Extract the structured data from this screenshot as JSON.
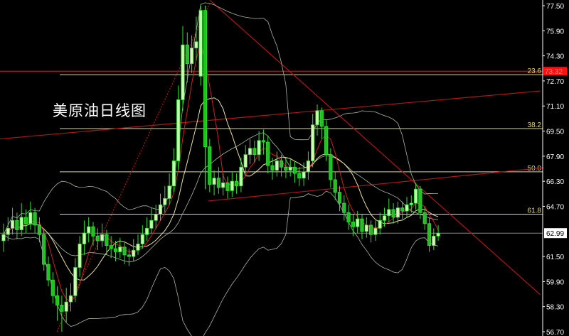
{
  "chart_data": {
    "type": "candlestick",
    "title": "美原油日线图",
    "y_ticks": [
      "77.50",
      "75.90",
      "74.30",
      "72.70",
      "71.10",
      "69.50",
      "67.90",
      "66.30",
      "64.70",
      "61.50",
      "59.90",
      "58.30",
      "56.70"
    ],
    "ylim": [
      56.7,
      77.5
    ],
    "last_price": "62.99",
    "red_level_label": "73.32",
    "red_level": 73.32,
    "fib_levels": [
      {
        "label": "23.6",
        "price": 73.1
      },
      {
        "label": "38.2",
        "price": 69.66
      },
      {
        "label": "50.0",
        "price": 66.9
      },
      {
        "label": "61.8",
        "price": 64.2
      }
    ],
    "trend_lines": [
      {
        "style": "solid",
        "from": [
          -0.8,
          69.0
        ],
        "to": [
          119.8,
          72.06
        ]
      },
      {
        "style": "solid",
        "from": [
          46,
          77.86
        ],
        "to": [
          119.8,
          59.06
        ]
      },
      {
        "style": "solid",
        "from": [
          45.7,
          65.04
        ],
        "to": [
          127,
          67.35
        ]
      },
      {
        "style": "dotted",
        "from": [
          11.9,
          56.7
        ],
        "to": [
          46,
          77.64
        ]
      }
    ],
    "indicators": {
      "ma_fast": 5,
      "ma_slow": 10,
      "bollinger": 20
    },
    "colors": {
      "up": "#c8ffb0",
      "down": "#22c022",
      "wick": "#33dd33",
      "ma_fast": "#d02020",
      "ma_slow": "#e8e0a0",
      "bollinger": "#a8b8a0",
      "fib": "#d8d8a8",
      "trend": "#b01818",
      "axis": "#ffffff",
      "price_tag": "#ff1010"
    },
    "ohlc": [
      [
        62.5,
        63.6,
        61.8,
        62.9
      ],
      [
        62.9,
        64.0,
        62.5,
        63.3
      ],
      [
        63.3,
        64.6,
        62.9,
        63.8
      ],
      [
        63.8,
        64.3,
        62.6,
        63.2
      ],
      [
        63.2,
        64.9,
        62.8,
        64.0
      ],
      [
        64.0,
        64.5,
        63.0,
        63.6
      ],
      [
        63.6,
        65.0,
        63.2,
        64.3
      ],
      [
        64.3,
        64.6,
        63.0,
        63.5
      ],
      [
        63.5,
        64.0,
        62.4,
        62.9
      ],
      [
        62.9,
        63.2,
        60.6,
        61.0
      ],
      [
        61.0,
        61.5,
        59.6,
        60.0
      ],
      [
        60.0,
        60.5,
        58.5,
        59.0
      ],
      [
        59.0,
        59.6,
        57.4,
        58.4
      ],
      [
        58.4,
        59.0,
        56.7,
        58.0
      ],
      [
        58.0,
        59.5,
        57.3,
        58.6
      ],
      [
        58.6,
        59.8,
        58.0,
        59.0
      ],
      [
        59.0,
        61.4,
        58.6,
        60.8
      ],
      [
        60.8,
        62.8,
        60.2,
        62.3
      ],
      [
        62.3,
        63.8,
        61.6,
        63.0
      ],
      [
        63.0,
        64.0,
        62.4,
        63.4
      ],
      [
        63.4,
        63.7,
        62.2,
        62.8
      ],
      [
        62.8,
        63.3,
        61.9,
        62.5
      ],
      [
        62.5,
        63.6,
        62.1,
        62.9
      ],
      [
        62.9,
        63.2,
        61.6,
        62.2
      ],
      [
        62.2,
        62.8,
        61.4,
        62.0
      ],
      [
        62.0,
        62.5,
        61.2,
        61.8
      ],
      [
        61.8,
        62.7,
        61.4,
        62.1
      ],
      [
        62.1,
        62.4,
        61.0,
        61.6
      ],
      [
        61.6,
        62.0,
        60.9,
        61.5
      ],
      [
        61.5,
        62.6,
        61.2,
        61.9
      ],
      [
        61.9,
        62.9,
        61.6,
        62.3
      ],
      [
        62.3,
        63.5,
        62.0,
        62.9
      ],
      [
        62.9,
        64.0,
        62.5,
        63.3
      ],
      [
        63.3,
        64.6,
        63.0,
        63.8
      ],
      [
        63.8,
        64.8,
        63.3,
        64.2
      ],
      [
        64.2,
        65.5,
        63.8,
        64.8
      ],
      [
        64.8,
        66.0,
        64.3,
        65.2
      ],
      [
        65.2,
        66.8,
        64.8,
        66.0
      ],
      [
        66.0,
        68.4,
        65.6,
        67.6
      ],
      [
        67.6,
        72.4,
        67.0,
        71.5
      ],
      [
        71.5,
        76.2,
        70.8,
        75.0
      ],
      [
        75.0,
        75.8,
        72.6,
        73.8
      ],
      [
        73.8,
        75.6,
        73.2,
        74.8
      ],
      [
        74.8,
        76.8,
        74.0,
        75.2
      ],
      [
        73.0,
        77.5,
        72.4,
        77.2
      ],
      [
        77.2,
        77.5,
        65.8,
        68.5
      ],
      [
        68.5,
        69.0,
        65.6,
        66.1
      ],
      [
        66.1,
        67.0,
        65.4,
        66.5
      ],
      [
        66.5,
        67.2,
        65.5,
        65.9
      ],
      [
        65.9,
        66.8,
        65.4,
        66.2
      ],
      [
        66.2,
        66.6,
        65.2,
        65.7
      ],
      [
        65.7,
        66.9,
        65.3,
        66.3
      ],
      [
        66.3,
        66.8,
        65.5,
        66.0
      ],
      [
        66.0,
        67.8,
        65.6,
        67.2
      ],
      [
        67.2,
        68.6,
        66.8,
        68.0
      ],
      [
        68.0,
        69.0,
        67.4,
        68.4
      ],
      [
        68.4,
        68.9,
        67.5,
        68.0
      ],
      [
        68.0,
        69.5,
        67.6,
        68.9
      ],
      [
        68.9,
        69.6,
        68.0,
        68.8
      ],
      [
        68.8,
        69.2,
        66.8,
        67.3
      ],
      [
        67.3,
        67.8,
        66.4,
        67.0
      ],
      [
        67.0,
        68.2,
        66.6,
        67.6
      ],
      [
        67.6,
        68.0,
        66.6,
        67.2
      ],
      [
        67.2,
        67.8,
        66.5,
        67.0
      ],
      [
        67.0,
        67.7,
        66.6,
        67.2
      ],
      [
        67.2,
        67.6,
        66.2,
        66.8
      ],
      [
        66.8,
        67.2,
        66.0,
        66.5
      ],
      [
        66.5,
        67.5,
        66.0,
        66.9
      ],
      [
        66.9,
        68.2,
        66.4,
        67.6
      ],
      [
        67.6,
        70.6,
        67.2,
        69.9
      ],
      [
        69.9,
        71.2,
        69.2,
        70.8
      ],
      [
        70.8,
        71.0,
        69.0,
        69.8
      ],
      [
        69.8,
        70.2,
        67.6,
        68.0
      ],
      [
        68.0,
        68.4,
        65.9,
        66.4
      ],
      [
        66.4,
        66.9,
        65.1,
        65.6
      ],
      [
        65.6,
        66.0,
        64.4,
        64.9
      ],
      [
        64.9,
        65.4,
        63.8,
        64.3
      ],
      [
        64.3,
        64.8,
        63.2,
        63.7
      ],
      [
        63.7,
        64.2,
        62.8,
        63.4
      ],
      [
        63.4,
        64.4,
        63.0,
        63.9
      ],
      [
        63.9,
        64.2,
        62.6,
        63.1
      ],
      [
        63.1,
        64.0,
        62.7,
        63.5
      ],
      [
        63.5,
        63.8,
        62.4,
        62.9
      ],
      [
        62.9,
        63.8,
        62.5,
        63.3
      ],
      [
        63.3,
        64.3,
        62.9,
        63.8
      ],
      [
        63.8,
        64.6,
        63.4,
        64.1
      ],
      [
        64.1,
        65.2,
        63.7,
        64.5
      ],
      [
        64.5,
        64.9,
        63.6,
        64.0
      ],
      [
        64.0,
        65.0,
        63.6,
        64.6
      ],
      [
        64.6,
        65.0,
        63.9,
        64.4
      ],
      [
        64.4,
        65.3,
        64.0,
        64.8
      ],
      [
        64.8,
        65.4,
        64.3,
        64.9
      ],
      [
        64.9,
        66.2,
        64.5,
        65.8
      ],
      [
        65.8,
        66.0,
        63.9,
        64.3
      ],
      [
        64.3,
        64.7,
        63.2,
        63.6
      ],
      [
        63.6,
        64.0,
        61.8,
        62.2
      ],
      [
        62.2,
        63.3,
        61.9,
        62.8
      ],
      [
        62.8,
        63.5,
        62.5,
        62.99
      ]
    ]
  }
}
